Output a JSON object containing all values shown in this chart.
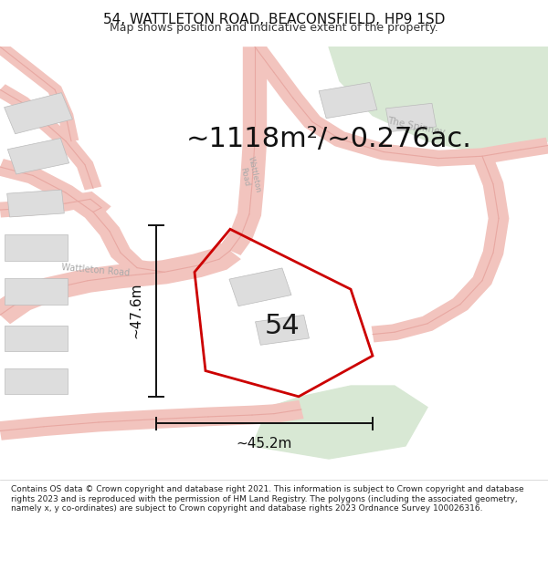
{
  "title": "54, WATTLETON ROAD, BEACONSFIELD, HP9 1SD",
  "subtitle": "Map shows position and indicative extent of the property.",
  "area_text": "~1118m²/~0.276ac.",
  "label_54": "54",
  "dim_vertical": "~47.6m",
  "dim_horizontal": "~45.2m",
  "footer": "Contains OS data © Crown copyright and database right 2021. This information is subject to Crown copyright and database rights 2023 and is reproduced with the permission of HM Land Registry. The polygons (including the associated geometry, namely x, y co-ordinates) are subject to Crown copyright and database rights 2023 Ordnance Survey 100026316.",
  "bg_color": "#ffffff",
  "map_bg": "#f7f4ef",
  "road_fill": "#f2c4be",
  "road_edge": "#e8a8a2",
  "green_color": "#d8e8d4",
  "property_color": "#cc0000",
  "building_color": "#dddddd",
  "building_edge": "#bbbbbb",
  "dim_color": "#111111",
  "road_label_color": "#aaaaaa",
  "title_fontsize": 11,
  "subtitle_fontsize": 9,
  "area_fontsize": 22,
  "label_fontsize": 22,
  "dim_fontsize": 11,
  "footer_fontsize": 6.5,
  "figsize": [
    6.0,
    6.25
  ],
  "dpi": 100
}
